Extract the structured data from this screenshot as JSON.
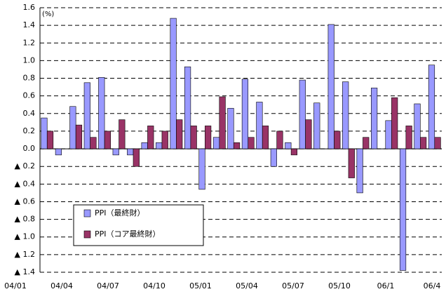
{
  "chart_data": {
    "type": "bar",
    "unit_label": "(%)",
    "categories": [
      "04/01",
      null,
      null,
      "04/04",
      null,
      null,
      "04/07",
      null,
      null,
      "04/10",
      null,
      null,
      "05/01",
      null,
      null,
      "05/04",
      null,
      null,
      "05/07",
      null,
      null,
      "05/10",
      null,
      null,
      "06/1",
      null,
      null,
      "06/4"
    ],
    "series": [
      {
        "name": "PPI（最終財）",
        "color": "#9999ff",
        "values": [
          0.35,
          -0.07,
          0.48,
          0.75,
          0.81,
          -0.07,
          -0.07,
          0.07,
          0.07,
          1.48,
          0.93,
          -0.46,
          0.13,
          0.46,
          0.79,
          0.53,
          -0.2,
          0.07,
          0.78,
          0.52,
          1.41,
          0.76,
          -0.5,
          0.69,
          0.32,
          -1.38,
          0.51,
          0.95
        ]
      },
      {
        "name": "PPI（コア最終財）",
        "color": "#993366",
        "values": [
          0.2,
          0,
          0.27,
          0.13,
          0.2,
          0.33,
          -0.2,
          0.26,
          0.2,
          0.33,
          0.26,
          0.26,
          0.59,
          0.07,
          0.13,
          0.26,
          0.2,
          -0.07,
          0.33,
          0,
          0.2,
          -0.33,
          0.13,
          0,
          0.58,
          0.26,
          0.13,
          0.13
        ]
      }
    ],
    "ylim": [
      -1.4,
      1.6
    ],
    "yticks": [
      1.6,
      1.4,
      1.2,
      {
        "value": 1.0,
        "label": "1.0"
      },
      0.8,
      0.6,
      0.4,
      0.2,
      {
        "value": 0,
        "label": "0.0"
      },
      {
        "value": -0.2,
        "label": "▲ 0.2"
      },
      {
        "value": -0.4,
        "label": "▲ 0.4"
      },
      {
        "value": -0.6,
        "label": "▲ 0.6"
      },
      {
        "value": -0.8,
        "label": "▲ 0.8"
      },
      {
        "value": -1.0,
        "label": "▲ 1.0"
      },
      {
        "value": -1.2,
        "label": "▲ 1.2"
      },
      {
        "value": -1.4,
        "label": "▲ 1.4"
      }
    ],
    "grid": true,
    "legend_position": "lower left"
  }
}
